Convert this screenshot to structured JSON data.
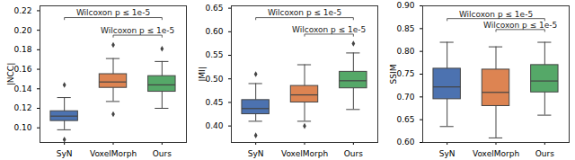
{
  "chart_data": [
    {
      "type": "box",
      "ylabel": "|NCC|",
      "categories": [
        "SyN",
        "VoxelMorph",
        "Ours"
      ],
      "colors": [
        "#4c72b0",
        "#dd8452",
        "#55a868"
      ],
      "ylim": [
        0.085,
        0.225
      ],
      "yticks": [
        {
          "value": 0.1,
          "label": "0.10"
        },
        0.12,
        0.14,
        0.16,
        0.18,
        {
          "value": 0.2,
          "label": "0.20"
        },
        0.22
      ],
      "boxes": [
        {
          "whislo": 0.098,
          "q1": 0.107,
          "median": 0.112,
          "q3": 0.117,
          "whishi": 0.131,
          "fliers": [
            0.144,
            0.088
          ]
        },
        {
          "whislo": 0.127,
          "q1": 0.141,
          "median": 0.147,
          "q3": 0.155,
          "whishi": 0.171,
          "fliers": [
            0.185,
            0.114
          ]
        },
        {
          "whislo": 0.12,
          "q1": 0.137,
          "median": 0.144,
          "q3": 0.153,
          "whishi": 0.168,
          "fliers": [
            0.181
          ]
        }
      ],
      "annotations": [
        {
          "text": "Wilcoxon p ≤ 1e-5",
          "from": "SyN",
          "to": "Ours",
          "y": 0.213
        },
        {
          "text": "Wilcoxon p ≤ 1e-5",
          "from": "VoxelMorph",
          "to": "Ours",
          "y": 0.195
        }
      ]
    },
    {
      "type": "box",
      "ylabel": "|MI|",
      "categories": [
        "SyN",
        "VoxelMorph",
        "Ours"
      ],
      "colors": [
        "#4c72b0",
        "#dd8452",
        "#55a868"
      ],
      "ylim": [
        0.365,
        0.655
      ],
      "yticks": [
        {
          "value": 0.4,
          "label": "0.40"
        },
        0.45,
        {
          "value": 0.5,
          "label": "0.50"
        },
        0.55,
        {
          "value": 0.6,
          "label": "0.60"
        },
        0.65
      ],
      "boxes": [
        {
          "whislo": 0.41,
          "q1": 0.425,
          "median": 0.437,
          "q3": 0.455,
          "whishi": 0.49,
          "fliers": [
            0.51,
            0.38
          ]
        },
        {
          "whislo": 0.41,
          "q1": 0.45,
          "median": 0.466,
          "q3": 0.485,
          "whishi": 0.53,
          "fliers": [
            0.4
          ]
        },
        {
          "whislo": 0.435,
          "q1": 0.48,
          "median": 0.496,
          "q3": 0.515,
          "whishi": 0.555,
          "fliers": [
            0.575
          ]
        }
      ],
      "annotations": [
        {
          "text": "Wilcoxon p ≤ 1e-5",
          "from": "SyN",
          "to": "Ours",
          "y": 0.63
        },
        {
          "text": "Wilcoxon p ≤ 1e-5",
          "from": "VoxelMorph",
          "to": "Ours",
          "y": 0.595
        }
      ]
    },
    {
      "type": "box",
      "ylabel": "SSIM",
      "categories": [
        "SyN",
        "VoxelMorph",
        "Ours"
      ],
      "colors": [
        "#4c72b0",
        "#dd8452",
        "#55a868"
      ],
      "ylim": [
        0.6,
        0.9
      ],
      "yticks": [
        {
          "value": 0.6,
          "label": "0.60"
        },
        0.65,
        {
          "value": 0.7,
          "label": "0.70"
        },
        0.75,
        {
          "value": 0.8,
          "label": "0.80"
        },
        0.85,
        {
          "value": 0.9,
          "label": "0.90"
        }
      ],
      "boxes": [
        {
          "whislo": 0.635,
          "q1": 0.695,
          "median": 0.722,
          "q3": 0.762,
          "whishi": 0.82,
          "fliers": []
        },
        {
          "whislo": 0.61,
          "q1": 0.68,
          "median": 0.71,
          "q3": 0.76,
          "whishi": 0.81,
          "fliers": []
        },
        {
          "whislo": 0.66,
          "q1": 0.71,
          "median": 0.735,
          "q3": 0.77,
          "whishi": 0.82,
          "fliers": []
        }
      ],
      "annotations": [
        {
          "text": "Wilcoxon p ≤ 1e-5",
          "from": "SyN",
          "to": "Ours",
          "y": 0.872
        },
        {
          "text": "Wilcoxon p ≤ 1e-5",
          "from": "VoxelMorph",
          "to": "Ours",
          "y": 0.848
        }
      ]
    }
  ]
}
